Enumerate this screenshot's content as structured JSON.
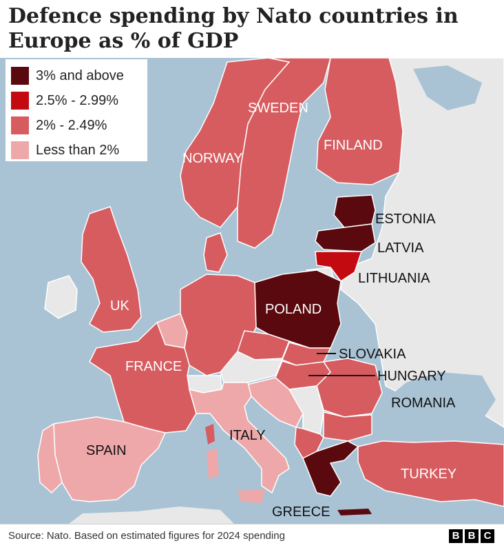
{
  "title": "Defence spending by Nato countries in Europe as % of GDP",
  "legend": [
    {
      "label": "3% and above",
      "color": "#5a0a0e"
    },
    {
      "label": "2.5% - 2.99%",
      "color": "#c20a10"
    },
    {
      "label": "2% - 2.49%",
      "color": "#d65c60"
    },
    {
      "label": "Less than 2%",
      "color": "#eea8aa"
    }
  ],
  "colors": {
    "sea": "#a9c3d5",
    "non_nato": "#e8e8e8",
    "border": "#ffffff"
  },
  "countries": {
    "sweden": {
      "name": "SWEDEN",
      "category": "2% - 2.49%"
    },
    "finland": {
      "name": "FINLAND",
      "category": "2% - 2.49%"
    },
    "norway": {
      "name": "NORWAY",
      "category": "2% - 2.49%"
    },
    "estonia": {
      "name": "ESTONIA",
      "category": "3% and above"
    },
    "latvia": {
      "name": "LATVIA",
      "category": "3% and above"
    },
    "lithuania": {
      "name": "LITHUANIA",
      "category": "2.5% - 2.99%"
    },
    "uk": {
      "name": "UK",
      "category": "2% - 2.49%"
    },
    "poland": {
      "name": "POLAND",
      "category": "3% and above"
    },
    "slovakia": {
      "name": "SLOVAKIA",
      "category": "2% - 2.49%"
    },
    "hungary": {
      "name": "HUNGARY",
      "category": "2% - 2.49%"
    },
    "france": {
      "name": "FRANCE",
      "category": "2% - 2.49%"
    },
    "romania": {
      "name": "ROMANIA",
      "category": "2% - 2.49%"
    },
    "italy": {
      "name": "ITALY",
      "category": "Less than 2%"
    },
    "spain": {
      "name": "SPAIN",
      "category": "Less than 2%"
    },
    "turkey": {
      "name": "TURKEY",
      "category": "2% - 2.49%"
    },
    "greece": {
      "name": "GREECE",
      "category": "3% and above"
    }
  },
  "source": "Source: Nato. Based on estimated figures for 2024 spending",
  "logo": [
    "B",
    "B",
    "C"
  ]
}
